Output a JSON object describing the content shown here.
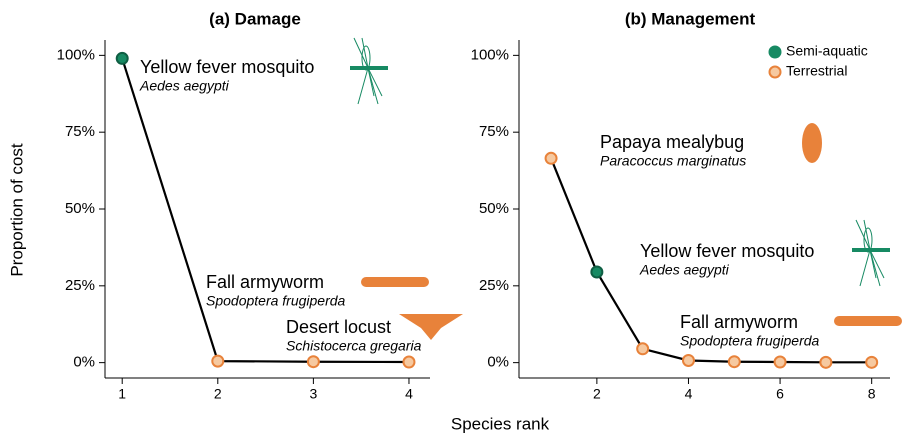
{
  "ylabel": "Proportion of cost",
  "xlabel": "Species rank",
  "chart_data": [
    {
      "type": "line",
      "title": "(a) Damage",
      "x": [
        1,
        2,
        3,
        4
      ],
      "series": [
        {
          "values": [
            99,
            0.5,
            0.3,
            0.2
          ],
          "color": "#000000",
          "point_colors": [
            "#178a63",
            "#e8823a",
            "#e8823a",
            "#e8823a"
          ]
        }
      ],
      "xlim": [
        0.82,
        4.22
      ],
      "xticks": [
        1,
        2,
        3,
        4
      ],
      "ylim": [
        -5,
        105
      ],
      "yticks": [
        {
          "value": 0,
          "label": "0%"
        },
        {
          "value": 25,
          "label": "25%"
        },
        {
          "value": 50,
          "label": "50%"
        },
        {
          "value": 75,
          "label": "75%"
        },
        {
          "value": 100,
          "label": "100%"
        }
      ],
      "annotations": [
        {
          "text": "Yellow fever mosquito",
          "species": "Aedes aegypti",
          "color": "#178a63"
        },
        {
          "text": "Fall armyworm",
          "species": "Spodoptera frugiperda",
          "color": "#e8823a"
        },
        {
          "text": "Desert locust",
          "species": "Schistocerca gregaria",
          "color": "#e8823a"
        }
      ]
    },
    {
      "type": "line",
      "title": "(b) Management",
      "x": [
        1,
        2,
        3,
        4,
        5,
        6,
        7,
        8
      ],
      "series": [
        {
          "values": [
            66.5,
            29.5,
            4.5,
            0.7,
            0.3,
            0.2,
            0.1,
            0.1
          ],
          "color": "#000000",
          "point_colors": [
            "#e8823a",
            "#178a63",
            "#e8823a",
            "#e8823a",
            "#e8823a",
            "#e8823a",
            "#e8823a",
            "#e8823a"
          ]
        }
      ],
      "xlim": [
        0.3,
        8.4
      ],
      "xticks": [
        2,
        4,
        6,
        8
      ],
      "ylim": [
        -5,
        105
      ],
      "yticks": [
        {
          "value": 0,
          "label": "0%"
        },
        {
          "value": 25,
          "label": "25%"
        },
        {
          "value": 50,
          "label": "50%"
        },
        {
          "value": 75,
          "label": "75%"
        },
        {
          "value": 100,
          "label": "100%"
        }
      ],
      "legend": [
        {
          "name": "Semi-aquatic",
          "color": "#178a63"
        },
        {
          "name": "Terrestrial",
          "color": "#e8823a"
        }
      ],
      "annotations": [
        {
          "text": "Papaya mealybug",
          "species": "Paracoccus marginatus",
          "color": "#e8823a"
        },
        {
          "text": "Yellow fever mosquito",
          "species": "Aedes aegypti",
          "color": "#178a63"
        },
        {
          "text": "Fall armyworm",
          "species": "Spodoptera frugiperda",
          "color": "#e8823a"
        }
      ]
    }
  ]
}
